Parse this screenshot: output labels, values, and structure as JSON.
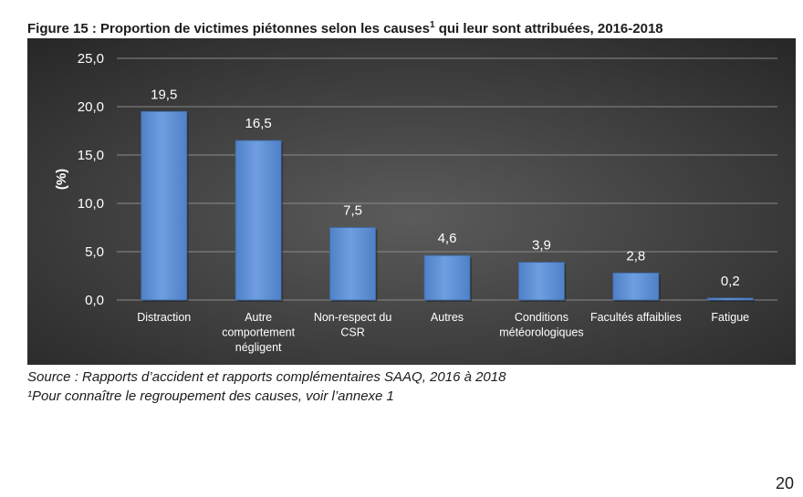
{
  "document": {
    "figure_title": "Figure 15 : Proportion de victimes piétonnes selon les causes",
    "figure_title_sup": "1",
    "figure_title_rest": " qui leur sont attribuées, 2016-2018",
    "source": "Source : Rapports d’accident et rapports complémentaires SAAQ, 2016 à 2018",
    "footnote_marker": "¹",
    "footnote": "Pour connaître le regroupement des causes, voir l’annexe 1",
    "page_number": "20"
  },
  "colors": {
    "panel_background_center": "#5b5b5b",
    "panel_background_edge": "#262626",
    "bar_fill": "#4f81c7",
    "bar_highlight": "#6f9ee0",
    "text": "#ffffff",
    "gridline": "#8a8a8a"
  },
  "chart_data": {
    "type": "bar",
    "title": "",
    "xlabel": "",
    "ylabel": "(%)",
    "ylim": [
      0,
      25
    ],
    "y_ticks": [
      "0,0",
      "5,0",
      "10,0",
      "15,0",
      "20,0",
      "25,0"
    ],
    "grid": true,
    "legend": "none",
    "categories": [
      [
        "Distraction"
      ],
      [
        "Autre",
        "comportement",
        "négligent"
      ],
      [
        "Non-respect du",
        "CSR"
      ],
      [
        "Autres"
      ],
      [
        "Conditions",
        "météorologiques"
      ],
      [
        "Facultés affaiblies"
      ],
      [
        "Fatigue"
      ]
    ],
    "values": [
      19.5,
      16.5,
      7.5,
      4.6,
      3.9,
      2.8,
      0.2
    ],
    "data_labels": [
      "19,5",
      "16,5",
      "7,5",
      "4,6",
      "3,9",
      "2,8",
      "0,2"
    ]
  }
}
